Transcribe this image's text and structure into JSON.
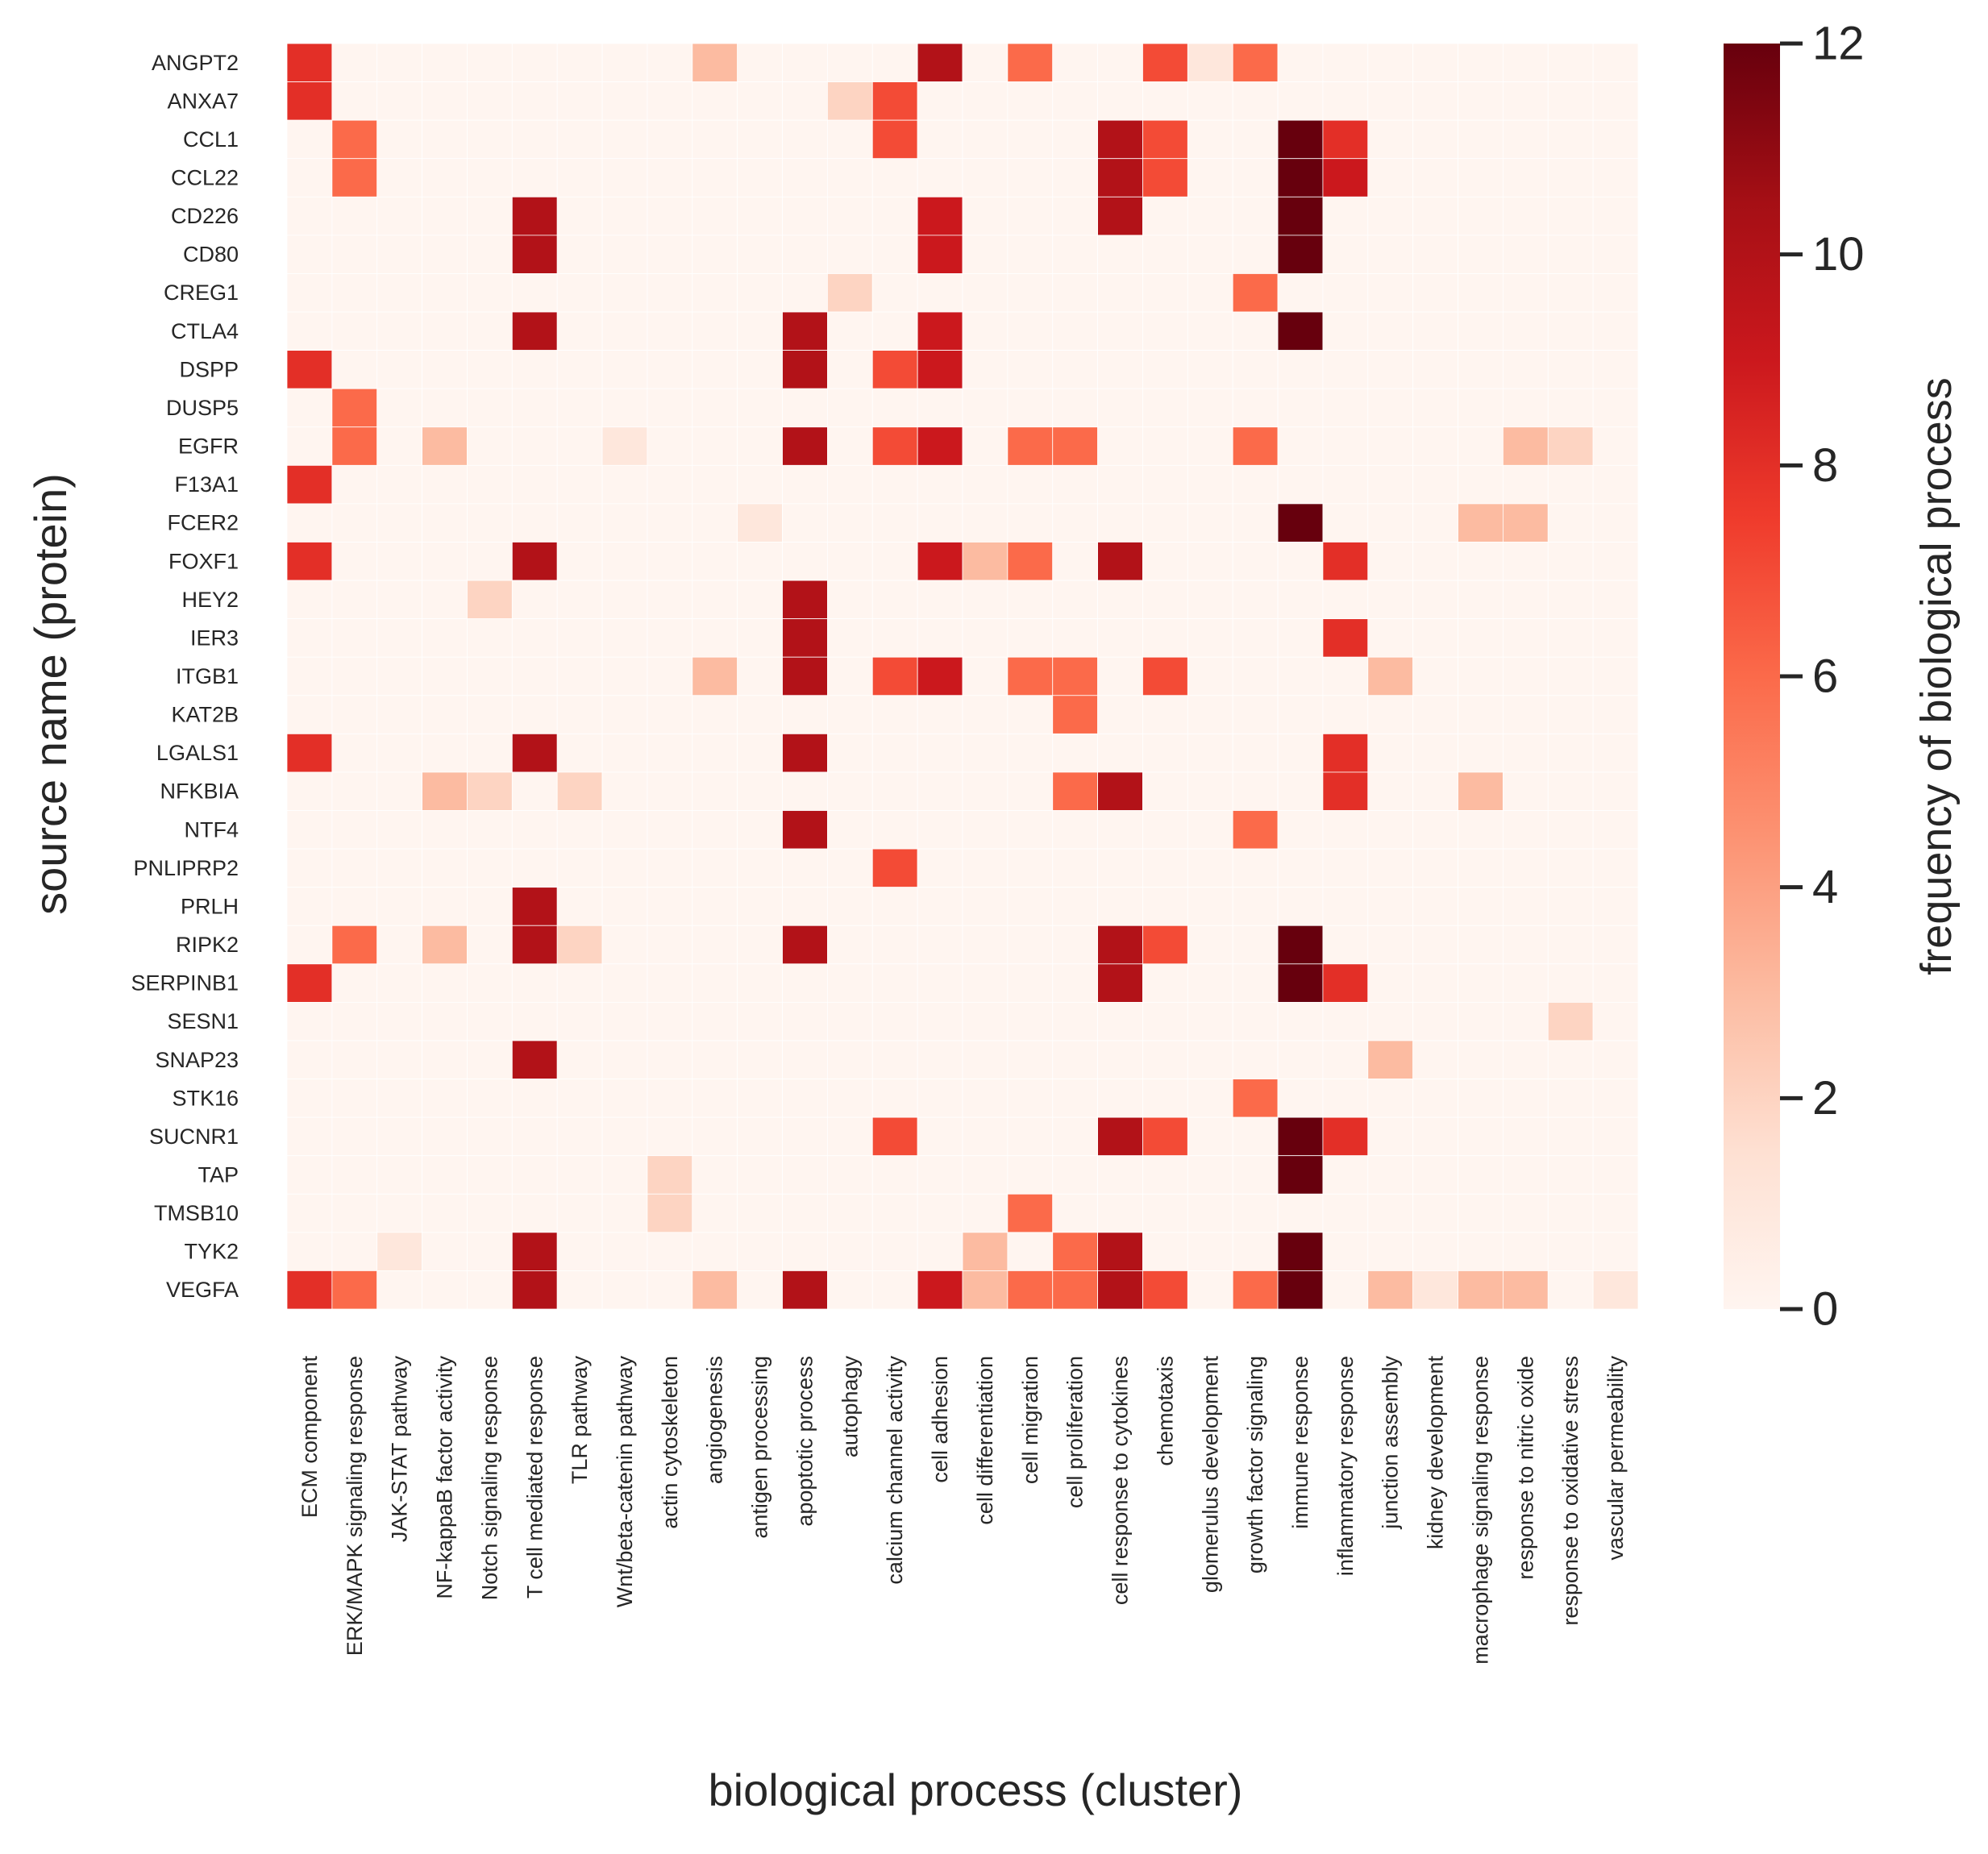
{
  "chart_data": {
    "type": "heatmap",
    "xlabel": "biological process (cluster)",
    "ylabel": "source name (protein)",
    "colorbar_label": "frequency of biological process",
    "vmin": 0,
    "vmax": 12,
    "colorbar_ticks": [
      0,
      2,
      4,
      6,
      8,
      10,
      12
    ],
    "colorbar_tick_labels": [
      "0",
      "2",
      "4",
      "6",
      "8",
      "10",
      "12"
    ],
    "colormap": "Reds",
    "colormap_stops": [
      "#fff5f0",
      "#fee0d2",
      "#fcbba1",
      "#fc9272",
      "#fb6a4a",
      "#ef3b2c",
      "#cb181d",
      "#a50f15",
      "#67000d"
    ],
    "rows": [
      "ANGPT2",
      "ANXA7",
      "CCL1",
      "CCL22",
      "CD226",
      "CD80",
      "CREG1",
      "CTLA4",
      "DSPP",
      "DUSP5",
      "EGFR",
      "F13A1",
      "FCER2",
      "FOXF1",
      "HEY2",
      "IER3",
      "ITGB1",
      "KAT2B",
      "LGALS1",
      "NFKBIA",
      "NTF4",
      "PNLIPRP2",
      "PRLH",
      "RIPK2",
      "SERPINB1",
      "SESN1",
      "SNAP23",
      "STK16",
      "SUCNR1",
      "TAP",
      "TMSB10",
      "TYK2",
      "VEGFA"
    ],
    "columns": [
      "ECM component",
      "ERK/MAPK signaling response",
      "JAK-STAT pathway",
      "NF-kappaB factor activity",
      "Notch signaling response",
      "T cell mediated response",
      "TLR pathway",
      "Wnt/beta-catenin pathway",
      "actin cytoskeleton",
      "angiogenesis",
      "antigen processing",
      "apoptotic process",
      "autophagy",
      "calcium channel activity",
      "cell adhesion",
      "cell differentiation",
      "cell migration",
      "cell proliferation",
      "cell response to cytokines",
      "chemotaxis",
      "glomerulus development",
      "growth factor signaling",
      "immune response",
      "inflammatory response",
      "junction assembly",
      "kidney development",
      "macrophage signaling response",
      "response to nitric oxide",
      "response to oxidative stress",
      "vascular permeability"
    ],
    "values": [
      [
        8,
        0,
        0,
        0,
        0,
        0,
        0,
        0,
        0,
        3,
        0,
        0,
        0,
        0,
        10,
        0,
        6,
        0,
        0,
        7,
        1,
        6,
        0,
        0,
        0,
        0,
        0,
        0,
        0,
        0
      ],
      [
        8,
        0,
        0,
        0,
        0,
        0,
        0,
        0,
        0,
        0,
        0,
        0,
        2,
        7,
        0,
        0,
        0,
        0,
        0,
        0,
        0,
        0,
        0,
        0,
        0,
        0,
        0,
        0,
        0,
        0
      ],
      [
        0,
        6,
        0,
        0,
        0,
        0,
        0,
        0,
        0,
        0,
        0,
        0,
        0,
        7,
        0,
        0,
        0,
        0,
        10,
        7,
        0,
        0,
        12,
        8,
        0,
        0,
        0,
        0,
        0,
        0
      ],
      [
        0,
        6,
        0,
        0,
        0,
        0,
        0,
        0,
        0,
        0,
        0,
        0,
        0,
        0,
        0,
        0,
        0,
        0,
        10,
        7,
        0,
        0,
        12,
        9,
        0,
        0,
        0,
        0,
        0,
        0
      ],
      [
        0,
        0,
        0,
        0,
        0,
        10,
        0,
        0,
        0,
        0,
        0,
        0,
        0,
        0,
        9,
        0,
        0,
        0,
        10,
        0,
        0,
        0,
        12,
        0,
        0,
        0,
        0,
        0,
        0,
        0
      ],
      [
        0,
        0,
        0,
        0,
        0,
        10,
        0,
        0,
        0,
        0,
        0,
        0,
        0,
        0,
        9,
        0,
        0,
        0,
        0,
        0,
        0,
        0,
        12,
        0,
        0,
        0,
        0,
        0,
        0,
        0
      ],
      [
        0,
        0,
        0,
        0,
        0,
        0,
        0,
        0,
        0,
        0,
        0,
        0,
        2,
        0,
        0,
        0,
        0,
        0,
        0,
        0,
        0,
        6,
        0,
        0,
        0,
        0,
        0,
        0,
        0,
        0
      ],
      [
        0,
        0,
        0,
        0,
        0,
        10,
        0,
        0,
        0,
        0,
        0,
        10,
        0,
        0,
        9,
        0,
        0,
        0,
        0,
        0,
        0,
        0,
        12,
        0,
        0,
        0,
        0,
        0,
        0,
        0
      ],
      [
        8,
        0,
        0,
        0,
        0,
        0,
        0,
        0,
        0,
        0,
        0,
        10,
        0,
        7,
        9,
        0,
        0,
        0,
        0,
        0,
        0,
        0,
        0,
        0,
        0,
        0,
        0,
        0,
        0,
        0
      ],
      [
        0,
        6,
        0,
        0,
        0,
        0,
        0,
        0,
        0,
        0,
        0,
        0,
        0,
        0,
        0,
        0,
        0,
        0,
        0,
        0,
        0,
        0,
        0,
        0,
        0,
        0,
        0,
        0,
        0,
        0
      ],
      [
        0,
        6,
        0,
        3,
        0,
        0,
        0,
        1,
        0,
        0,
        0,
        10,
        0,
        7,
        9,
        0,
        6,
        6,
        0,
        0,
        0,
        6,
        0,
        0,
        0,
        0,
        0,
        3,
        2,
        0
      ],
      [
        8,
        0,
        0,
        0,
        0,
        0,
        0,
        0,
        0,
        0,
        0,
        0,
        0,
        0,
        0,
        0,
        0,
        0,
        0,
        0,
        0,
        0,
        0,
        0,
        0,
        0,
        0,
        0,
        0,
        0
      ],
      [
        0,
        0,
        0,
        0,
        0,
        0,
        0,
        0,
        0,
        0,
        1,
        0,
        0,
        0,
        0,
        0,
        0,
        0,
        0,
        0,
        0,
        0,
        12,
        0,
        0,
        0,
        3,
        3,
        0,
        0
      ],
      [
        8,
        0,
        0,
        0,
        0,
        10,
        0,
        0,
        0,
        0,
        0,
        0,
        0,
        0,
        9,
        3,
        6,
        0,
        10,
        0,
        0,
        0,
        0,
        8,
        0,
        0,
        0,
        0,
        0,
        0
      ],
      [
        0,
        0,
        0,
        0,
        2,
        0,
        0,
        0,
        0,
        0,
        0,
        10,
        0,
        0,
        0,
        0,
        0,
        0,
        0,
        0,
        0,
        0,
        0,
        0,
        0,
        0,
        0,
        0,
        0,
        0
      ],
      [
        0,
        0,
        0,
        0,
        0,
        0,
        0,
        0,
        0,
        0,
        0,
        10,
        0,
        0,
        0,
        0,
        0,
        0,
        0,
        0,
        0,
        0,
        0,
        8,
        0,
        0,
        0,
        0,
        0,
        0
      ],
      [
        0,
        0,
        0,
        0,
        0,
        0,
        0,
        0,
        0,
        3,
        0,
        10,
        0,
        7,
        9,
        0,
        6,
        6,
        0,
        7,
        0,
        0,
        0,
        0,
        3,
        0,
        0,
        0,
        0,
        0
      ],
      [
        0,
        0,
        0,
        0,
        0,
        0,
        0,
        0,
        0,
        0,
        0,
        0,
        0,
        0,
        0,
        0,
        0,
        6,
        0,
        0,
        0,
        0,
        0,
        0,
        0,
        0,
        0,
        0,
        0,
        0
      ],
      [
        8,
        0,
        0,
        0,
        0,
        10,
        0,
        0,
        0,
        0,
        0,
        10,
        0,
        0,
        0,
        0,
        0,
        0,
        0,
        0,
        0,
        0,
        0,
        8,
        0,
        0,
        0,
        0,
        0,
        0
      ],
      [
        0,
        0,
        0,
        3,
        2,
        0,
        2,
        0,
        0,
        0,
        0,
        0,
        0,
        0,
        0,
        0,
        0,
        6,
        10,
        0,
        0,
        0,
        0,
        8,
        0,
        0,
        3,
        0,
        0,
        0
      ],
      [
        0,
        0,
        0,
        0,
        0,
        0,
        0,
        0,
        0,
        0,
        0,
        10,
        0,
        0,
        0,
        0,
        0,
        0,
        0,
        0,
        0,
        6,
        0,
        0,
        0,
        0,
        0,
        0,
        0,
        0
      ],
      [
        0,
        0,
        0,
        0,
        0,
        0,
        0,
        0,
        0,
        0,
        0,
        0,
        0,
        7,
        0,
        0,
        0,
        0,
        0,
        0,
        0,
        0,
        0,
        0,
        0,
        0,
        0,
        0,
        0,
        0
      ],
      [
        0,
        0,
        0,
        0,
        0,
        10,
        0,
        0,
        0,
        0,
        0,
        0,
        0,
        0,
        0,
        0,
        0,
        0,
        0,
        0,
        0,
        0,
        0,
        0,
        0,
        0,
        0,
        0,
        0,
        0
      ],
      [
        0,
        6,
        0,
        3,
        0,
        10,
        2,
        0,
        0,
        0,
        0,
        10,
        0,
        0,
        0,
        0,
        0,
        0,
        10,
        7,
        0,
        0,
        12,
        0,
        0,
        0,
        0,
        0,
        0,
        0
      ],
      [
        8,
        0,
        0,
        0,
        0,
        0,
        0,
        0,
        0,
        0,
        0,
        0,
        0,
        0,
        0,
        0,
        0,
        0,
        10,
        0,
        0,
        0,
        12,
        8,
        0,
        0,
        0,
        0,
        0,
        0
      ],
      [
        0,
        0,
        0,
        0,
        0,
        0,
        0,
        0,
        0,
        0,
        0,
        0,
        0,
        0,
        0,
        0,
        0,
        0,
        0,
        0,
        0,
        0,
        0,
        0,
        0,
        0,
        0,
        0,
        2,
        0
      ],
      [
        0,
        0,
        0,
        0,
        0,
        10,
        0,
        0,
        0,
        0,
        0,
        0,
        0,
        0,
        0,
        0,
        0,
        0,
        0,
        0,
        0,
        0,
        0,
        0,
        3,
        0,
        0,
        0,
        0,
        0
      ],
      [
        0,
        0,
        0,
        0,
        0,
        0,
        0,
        0,
        0,
        0,
        0,
        0,
        0,
        0,
        0,
        0,
        0,
        0,
        0,
        0,
        0,
        6,
        0,
        0,
        0,
        0,
        0,
        0,
        0,
        0
      ],
      [
        0,
        0,
        0,
        0,
        0,
        0,
        0,
        0,
        0,
        0,
        0,
        0,
        0,
        7,
        0,
        0,
        0,
        0,
        10,
        7,
        0,
        0,
        12,
        8,
        0,
        0,
        0,
        0,
        0,
        0
      ],
      [
        0,
        0,
        0,
        0,
        0,
        0,
        0,
        0,
        2,
        0,
        0,
        0,
        0,
        0,
        0,
        0,
        0,
        0,
        0,
        0,
        0,
        0,
        12,
        0,
        0,
        0,
        0,
        0,
        0,
        0
      ],
      [
        0,
        0,
        0,
        0,
        0,
        0,
        0,
        0,
        2,
        0,
        0,
        0,
        0,
        0,
        0,
        0,
        6,
        0,
        0,
        0,
        0,
        0,
        0,
        0,
        0,
        0,
        0,
        0,
        0,
        0
      ],
      [
        0,
        0,
        1,
        0,
        0,
        10,
        0,
        0,
        0,
        0,
        0,
        0,
        0,
        0,
        0,
        3,
        0,
        6,
        10,
        0,
        0,
        0,
        12,
        0,
        0,
        0,
        0,
        0,
        0,
        0
      ],
      [
        8,
        6,
        0,
        0,
        0,
        10,
        0,
        0,
        0,
        3,
        0,
        10,
        0,
        0,
        9,
        3,
        6,
        6,
        10,
        7,
        0,
        6,
        12,
        0,
        3,
        1,
        3,
        3,
        0,
        1
      ]
    ]
  }
}
